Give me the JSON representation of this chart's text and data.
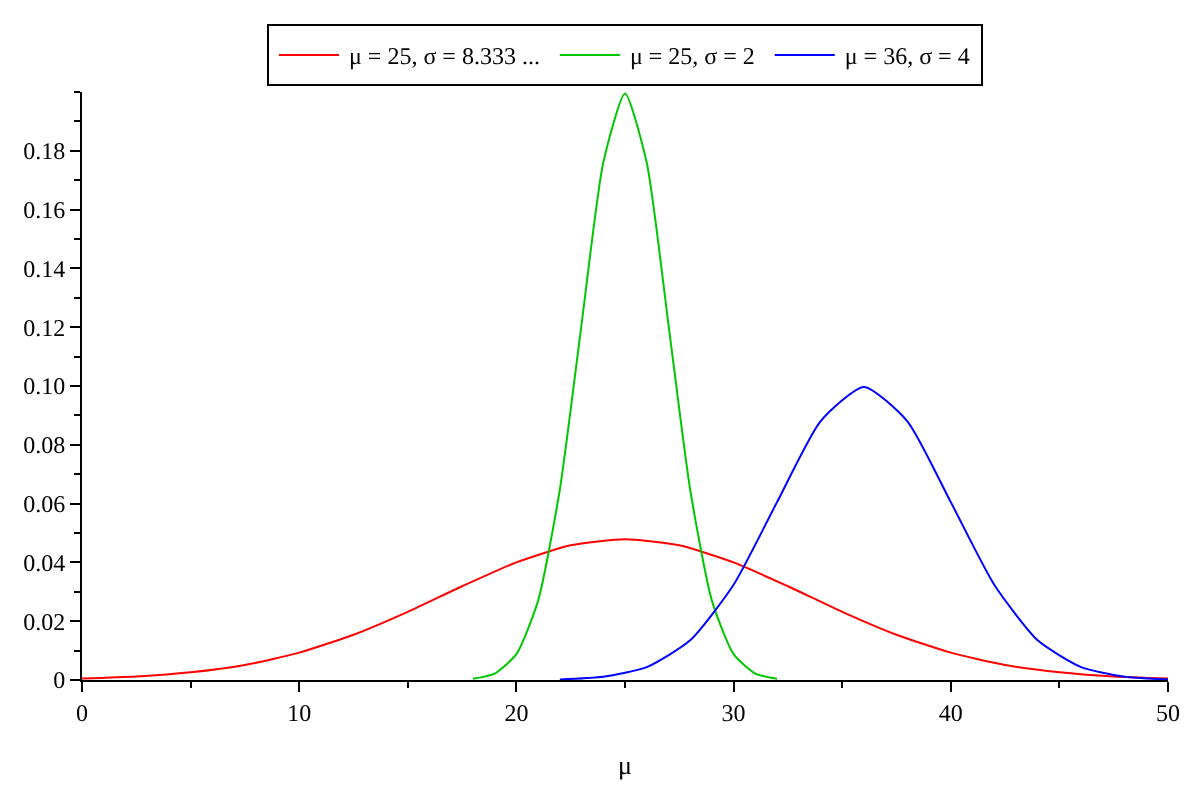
{
  "chart_data": {
    "type": "line",
    "xlabel": "μ",
    "xlim": [
      0,
      50
    ],
    "ylim": [
      0,
      0.2
    ],
    "xticks": [
      0,
      10,
      20,
      30,
      40,
      50
    ],
    "yticks": [
      0,
      {
        "value": 0.02,
        "label": "0.02"
      },
      {
        "value": 0.04,
        "label": "0.04"
      },
      {
        "value": 0.06,
        "label": "0.06"
      },
      {
        "value": 0.08,
        "label": "0.08"
      },
      {
        "value": 0.1,
        "label": "0.10"
      },
      {
        "value": 0.12,
        "label": "0.12"
      },
      {
        "value": 0.14,
        "label": "0.14"
      },
      {
        "value": 0.16,
        "label": "0.16"
      },
      {
        "value": 0.18,
        "label": "0.18"
      }
    ],
    "legend": "top",
    "marker": "none",
    "line_style": "solid",
    "series": [
      {
        "name": "μ = 25, σ = 8.333 ...",
        "color": "#ff0000",
        "x": [
          0,
          2.5,
          5,
          7.5,
          10,
          12.5,
          15,
          17.5,
          20,
          22.5,
          25,
          27.5,
          30,
          32.5,
          35,
          37.5,
          40,
          42.5,
          45,
          47.5,
          50
        ],
        "values": [
          0.0005,
          0.0012,
          0.0026,
          0.0051,
          0.0093,
          0.0154,
          0.0232,
          0.0319,
          0.04,
          0.0458,
          0.0479,
          0.0458,
          0.04,
          0.0319,
          0.0232,
          0.0154,
          0.0093,
          0.0051,
          0.0026,
          0.0012,
          0.0005
        ]
      },
      {
        "name": "μ = 25, σ = 2",
        "color": "#00c800",
        "x": [
          18,
          19,
          20,
          21,
          22,
          23,
          24,
          25,
          26,
          27,
          28,
          29,
          30,
          31,
          32
        ],
        "values": [
          0.0004,
          0.0022,
          0.0088,
          0.027,
          0.0648,
          0.121,
          0.176,
          0.1995,
          0.176,
          0.121,
          0.0648,
          0.027,
          0.0088,
          0.0022,
          0.0004
        ]
      },
      {
        "name": "μ = 36, σ = 4",
        "color": "#0000ff",
        "x": [
          22,
          24,
          26,
          28,
          30,
          32,
          34,
          36,
          38,
          40,
          42,
          44,
          46,
          48,
          50
        ],
        "values": [
          0.0002,
          0.0011,
          0.0044,
          0.0135,
          0.0324,
          0.0605,
          0.088,
          0.0997,
          0.088,
          0.0605,
          0.0324,
          0.0135,
          0.0044,
          0.0011,
          0.0002
        ]
      }
    ]
  }
}
